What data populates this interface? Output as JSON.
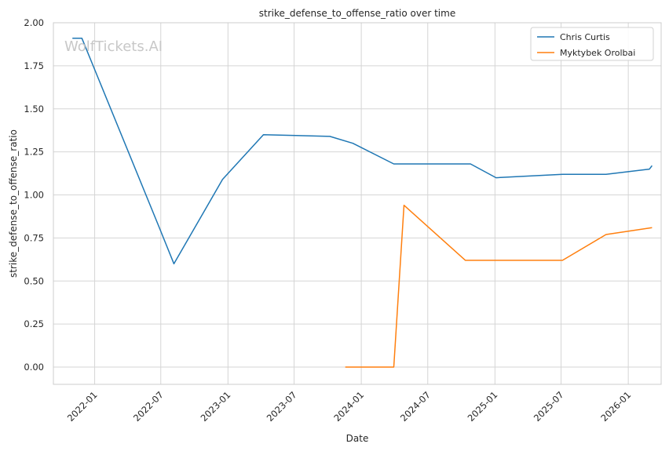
{
  "chart_data": {
    "type": "line",
    "title": "strike_defense_to_offense_ratio over time",
    "xlabel": "Date",
    "ylabel": "strike_defense_to_offense_ratio",
    "watermark": "WolfTickets.AI",
    "x_tick_labels": [
      "2022-01",
      "2022-07",
      "2023-01",
      "2023-07",
      "2024-01",
      "2024-07",
      "2025-01",
      "2025-07",
      "2026-01"
    ],
    "y_tick_labels": [
      "0.00",
      "0.25",
      "0.50",
      "0.75",
      "1.00",
      "1.25",
      "1.50",
      "1.75",
      "2.00"
    ],
    "xlim": [
      "2021-09-10",
      "2026-04-01"
    ],
    "ylim": [
      -0.1,
      2.0
    ],
    "grid": true,
    "legend_position": "top-right",
    "series": [
      {
        "name": "Chris Curtis",
        "color": "#1f77b4",
        "points": [
          {
            "x": "2021-11-01",
            "y": 1.91
          },
          {
            "x": "2021-11-27",
            "y": 1.91
          },
          {
            "x": "2022-06-25",
            "y": 0.82
          },
          {
            "x": "2022-08-06",
            "y": 0.6
          },
          {
            "x": "2022-12-17",
            "y": 1.09
          },
          {
            "x": "2023-04-08",
            "y": 1.35
          },
          {
            "x": "2023-10-07",
            "y": 1.34
          },
          {
            "x": "2023-12-09",
            "y": 1.3
          },
          {
            "x": "2024-03-30",
            "y": 1.18
          },
          {
            "x": "2024-10-26",
            "y": 1.18
          },
          {
            "x": "2025-01-04",
            "y": 1.1
          },
          {
            "x": "2025-07-05",
            "y": 1.12
          },
          {
            "x": "2025-11-01",
            "y": 1.12
          },
          {
            "x": "2026-02-28",
            "y": 1.15
          },
          {
            "x": "2026-03-07",
            "y": 1.17
          }
        ]
      },
      {
        "name": "Myktybek Orolbai",
        "color": "#ff7f0e",
        "points": [
          {
            "x": "2023-11-18",
            "y": 0.0
          },
          {
            "x": "2024-03-30",
            "y": 0.0
          },
          {
            "x": "2024-04-27",
            "y": 0.94
          },
          {
            "x": "2024-10-12",
            "y": 0.62
          },
          {
            "x": "2025-07-05",
            "y": 0.62
          },
          {
            "x": "2025-11-01",
            "y": 0.77
          },
          {
            "x": "2026-03-07",
            "y": 0.81
          }
        ]
      }
    ]
  }
}
